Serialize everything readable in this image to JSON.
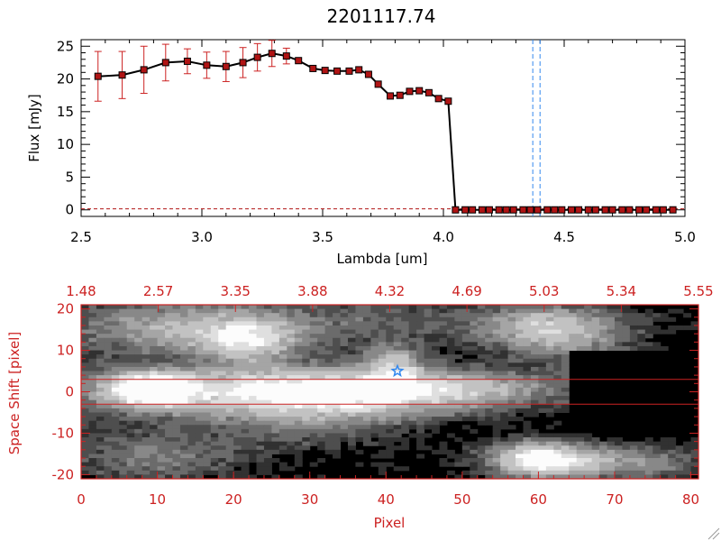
{
  "title": "2201117.74",
  "chart_data": [
    {
      "type": "line",
      "xlabel": "Lambda [um]",
      "ylabel": "Flux [mJy]",
      "xlim": [
        2.5,
        5.0
      ],
      "ylim": [
        -1,
        26
      ],
      "xticks": [
        "2.5",
        "3.0",
        "3.5",
        "4.0",
        "4.5",
        "5.0"
      ],
      "yticks": [
        "0",
        "5",
        "10",
        "15",
        "20",
        "25"
      ],
      "series": [
        {
          "name": "flux",
          "x": [
            2.57,
            2.67,
            2.76,
            2.85,
            2.94,
            3.02,
            3.1,
            3.17,
            3.23,
            3.29,
            3.35,
            3.4,
            3.46,
            3.51,
            3.56,
            3.61,
            3.65,
            3.69,
            3.73,
            3.78,
            3.82,
            3.86,
            3.9,
            3.94,
            3.98,
            4.02,
            4.05,
            4.09,
            4.12,
            4.16,
            4.19,
            4.23,
            4.26,
            4.29,
            4.33,
            4.36,
            4.39,
            4.43,
            4.46,
            4.49,
            4.53,
            4.56,
            4.6,
            4.63,
            4.67,
            4.7,
            4.74,
            4.77,
            4.81,
            4.84,
            4.88,
            4.91,
            4.95
          ],
          "y": [
            20.4,
            20.6,
            21.4,
            22.5,
            22.7,
            22.1,
            21.9,
            22.5,
            23.3,
            23.9,
            23.5,
            22.8,
            21.6,
            21.3,
            21.2,
            21.2,
            21.4,
            20.7,
            19.2,
            17.4,
            17.5,
            18.1,
            18.2,
            17.9,
            17.0,
            16.6,
            0,
            0,
            0,
            0,
            0,
            0,
            0,
            0,
            0,
            0,
            0,
            0,
            0,
            0,
            0,
            0,
            0,
            0,
            0,
            0,
            0,
            0,
            0,
            0,
            0,
            0,
            0
          ],
          "error": [
            3.8,
            3.6,
            3.6,
            2.8,
            1.9,
            2.0,
            2.3,
            2.3,
            2.1,
            2.0,
            1.2,
            0,
            0,
            0,
            0,
            0,
            0,
            0,
            0,
            0,
            0,
            0,
            0,
            0,
            0,
            0,
            0,
            0,
            0,
            0,
            0,
            0,
            0,
            0,
            0,
            0,
            0,
            0,
            0,
            0,
            0,
            0,
            0,
            0,
            0,
            0,
            0,
            0,
            0,
            0,
            0,
            0,
            0
          ]
        }
      ],
      "vlines": [
        4.37,
        4.4
      ],
      "hline": 0.15,
      "colors": {
        "line": "#000000",
        "marker": "#b01414",
        "error": "#cc2222",
        "vline": "#3388ee",
        "axis": "#000000"
      }
    },
    {
      "type": "heatmap",
      "xlabel": "Pixel",
      "ylabel": "Space Shift [pixel]",
      "xlim": [
        0,
        81
      ],
      "ylim": [
        -21,
        21
      ],
      "xticks": [
        "0",
        "10",
        "20",
        "30",
        "40",
        "50",
        "60",
        "70",
        "80"
      ],
      "yticks": [
        "-20",
        "-10",
        "0",
        "10",
        "20"
      ],
      "top_ticks": [
        "1.48",
        "2.57",
        "3.35",
        "3.88",
        "4.32",
        "4.69",
        "5.03",
        "5.34",
        "5.55"
      ],
      "hlines": [
        3,
        -3
      ],
      "marker": {
        "label": "star",
        "x": 41.5,
        "y": 5
      },
      "colors": {
        "axis": "#cc2222",
        "marker": "#3388ee",
        "hline": "#cc2222"
      }
    }
  ]
}
